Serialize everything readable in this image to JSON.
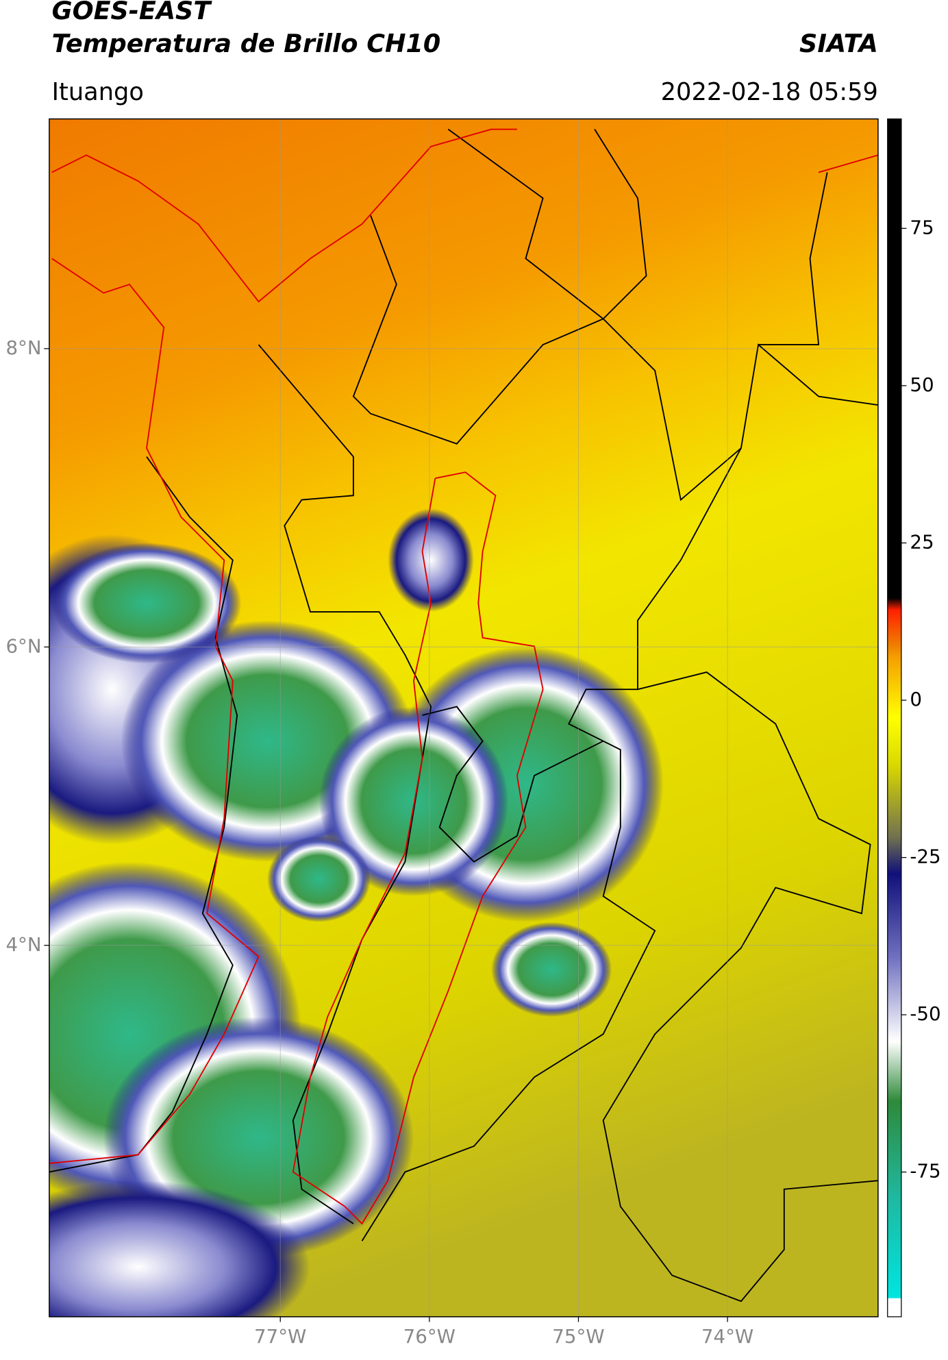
{
  "header": {
    "title": "GOES-EAST",
    "subtitle": "Temperatura de Brillo CH10",
    "source": "SIATA",
    "location": "Ituango",
    "timestamp": "2022-02-18 05:59"
  },
  "map": {
    "lat_range": [
      1.51,
      9.54
    ],
    "lon_range": [
      -78.55,
      -72.99
    ],
    "lat_ticks": [
      {
        "value": 8,
        "label": "8°N"
      },
      {
        "value": 6,
        "label": "6°N"
      },
      {
        "value": 4,
        "label": "4°N"
      }
    ],
    "lon_ticks": [
      {
        "value": -77,
        "label": "77°W"
      },
      {
        "value": -76,
        "label": "76°W"
      },
      {
        "value": -75,
        "label": "75°W"
      },
      {
        "value": -74,
        "label": "74°W"
      }
    ]
  },
  "colorbar": {
    "range": [
      -98,
      92.4
    ],
    "ticks": [
      75,
      50,
      25,
      0,
      -25,
      -50,
      -75
    ]
  }
}
